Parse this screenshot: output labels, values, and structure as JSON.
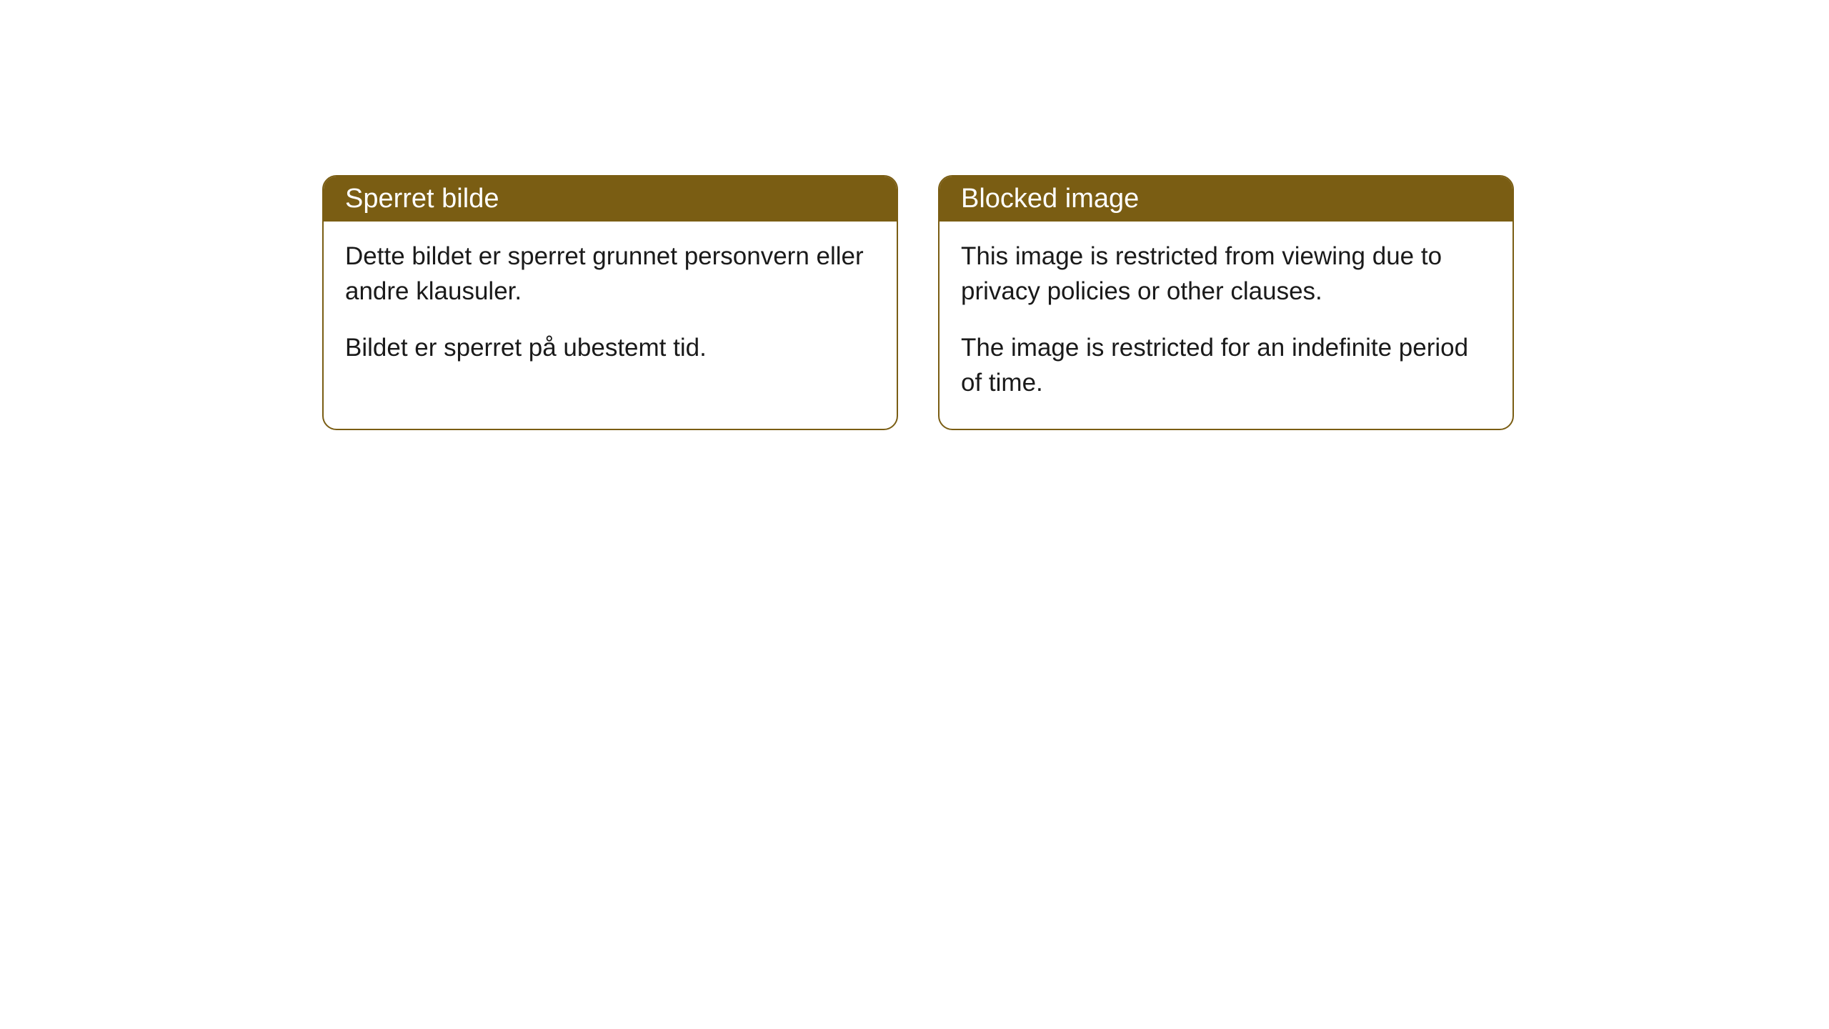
{
  "cards": [
    {
      "title": "Sperret bilde",
      "paragraph1": "Dette bildet er sperret grunnet personvern eller andre klausuler.",
      "paragraph2": "Bildet er sperret på ubestemt tid."
    },
    {
      "title": "Blocked image",
      "paragraph1": "This image is restricted from viewing due to privacy policies or other clauses.",
      "paragraph2": "The image is restricted for an indefinite period of time."
    }
  ],
  "style": {
    "header_bg": "#7a5d13",
    "header_text_color": "#ffffff",
    "border_color": "#7a5d13",
    "body_bg": "#ffffff",
    "body_text_color": "#1a1a1a",
    "border_radius": 20,
    "header_fontsize": 38,
    "body_fontsize": 35
  }
}
